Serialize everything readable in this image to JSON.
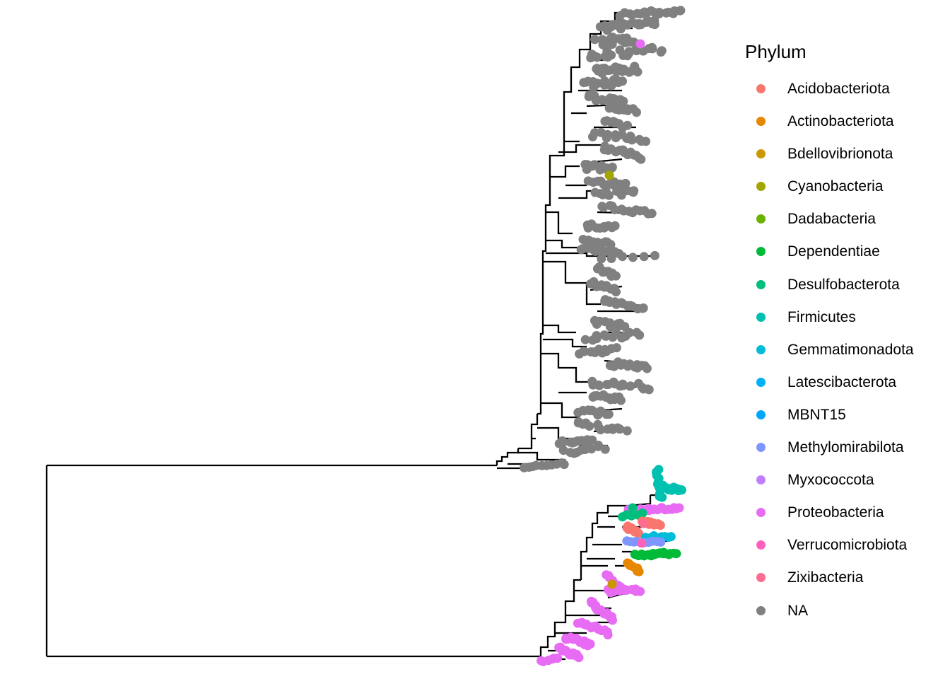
{
  "legend": {
    "title": "Phylum",
    "items": [
      {
        "label": "Acidobacteriota",
        "color": "#F8766D"
      },
      {
        "label": "Actinobacteriota",
        "color": "#E58700"
      },
      {
        "label": "Bdellovibrionota",
        "color": "#C99800"
      },
      {
        "label": "Cyanobacteria",
        "color": "#A3A500"
      },
      {
        "label": "Dadabacteria",
        "color": "#6BB100"
      },
      {
        "label": "Dependentiae",
        "color": "#00BA38"
      },
      {
        "label": "Desulfobacterota",
        "color": "#00BF7D"
      },
      {
        "label": "Firmicutes",
        "color": "#00C0AF"
      },
      {
        "label": "Gemmatimonadota",
        "color": "#00BCD8"
      },
      {
        "label": "Latescibacterota",
        "color": "#00B0F6"
      },
      {
        "label": "MBNT15",
        "color": "#00A5FF"
      },
      {
        "label": "Methylomirabilota",
        "color": "#7F96FF"
      },
      {
        "label": "Myxococcota",
        "color": "#BF80FF"
      },
      {
        "label": "Proteobacteria",
        "color": "#E76BF3"
      },
      {
        "label": "Verrucomicrobiota",
        "color": "#FF62BC"
      },
      {
        "label": "Zixibacteria",
        "color": "#FF6C91"
      },
      {
        "label": "NA",
        "color": "#808080"
      }
    ]
  }
}
